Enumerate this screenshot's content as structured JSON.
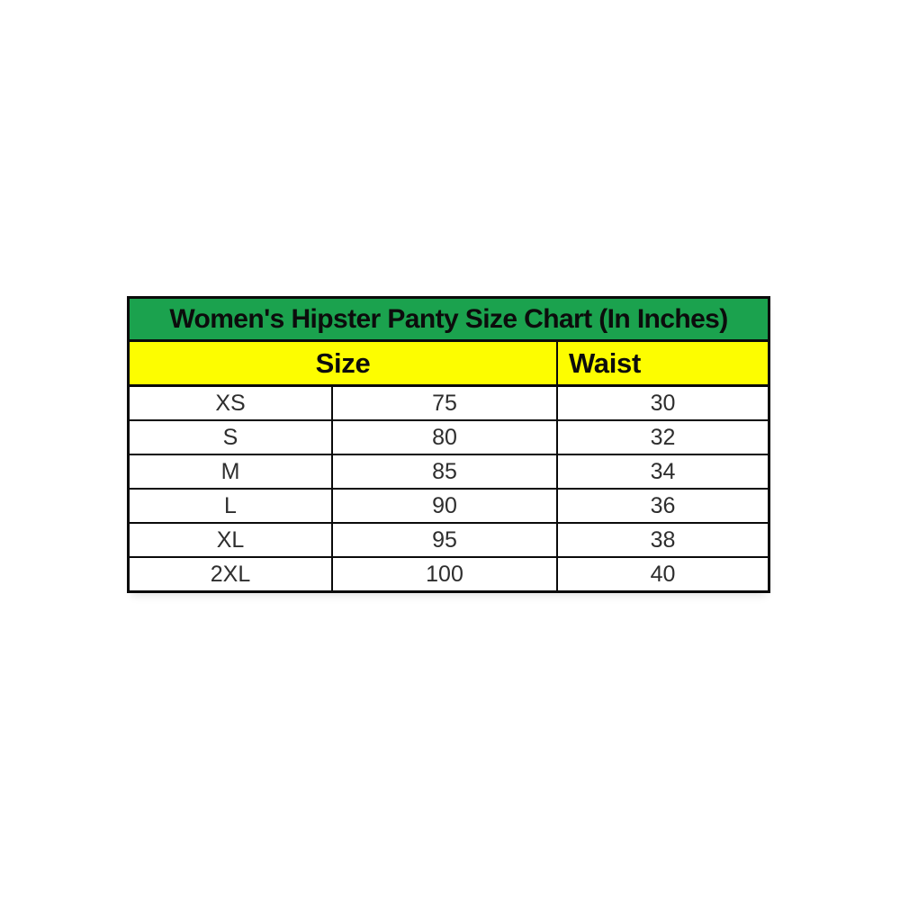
{
  "page": {
    "background": "#ffffff"
  },
  "table": {
    "title": "Women's Hipster Panty Size Chart (In Inches)",
    "headers": {
      "size": "Size",
      "waist": "Waist"
    },
    "rows": [
      {
        "size": "XS",
        "value": "75",
        "waist": "30"
      },
      {
        "size": "S",
        "value": "80",
        "waist": "32"
      },
      {
        "size": "M",
        "value": "85",
        "waist": "34"
      },
      {
        "size": "L",
        "value": "90",
        "waist": "36"
      },
      {
        "size": "XL",
        "value": "95",
        "waist": "38"
      },
      {
        "size": "2XL",
        "value": "100",
        "waist": "40"
      }
    ],
    "colors": {
      "title_background": "#1ba24e",
      "header_background": "#fdfd00",
      "border": "#0a0a0a",
      "title_text": "#0c0c0c",
      "data_text": "#2e2e2e"
    }
  },
  "chart_data": {
    "type": "table",
    "title": "Women's Hipster Panty Size Chart (In Inches)",
    "header_layout": [
      {
        "label": "Size",
        "span": 2
      },
      {
        "label": "Waist",
        "span": 1
      }
    ],
    "rows": [
      [
        "XS",
        "75",
        "30"
      ],
      [
        "S",
        "80",
        "32"
      ],
      [
        "M",
        "85",
        "34"
      ],
      [
        "L",
        "90",
        "36"
      ],
      [
        "XL",
        "95",
        "38"
      ],
      [
        "2XL",
        "100",
        "40"
      ]
    ],
    "notes": {
      "unit_label_shown": "In Inches",
      "waist_values_inches": [
        30,
        32,
        34,
        36,
        38,
        40
      ],
      "size_numeric_values": [
        75,
        80,
        85,
        90,
        95,
        100
      ]
    }
  }
}
